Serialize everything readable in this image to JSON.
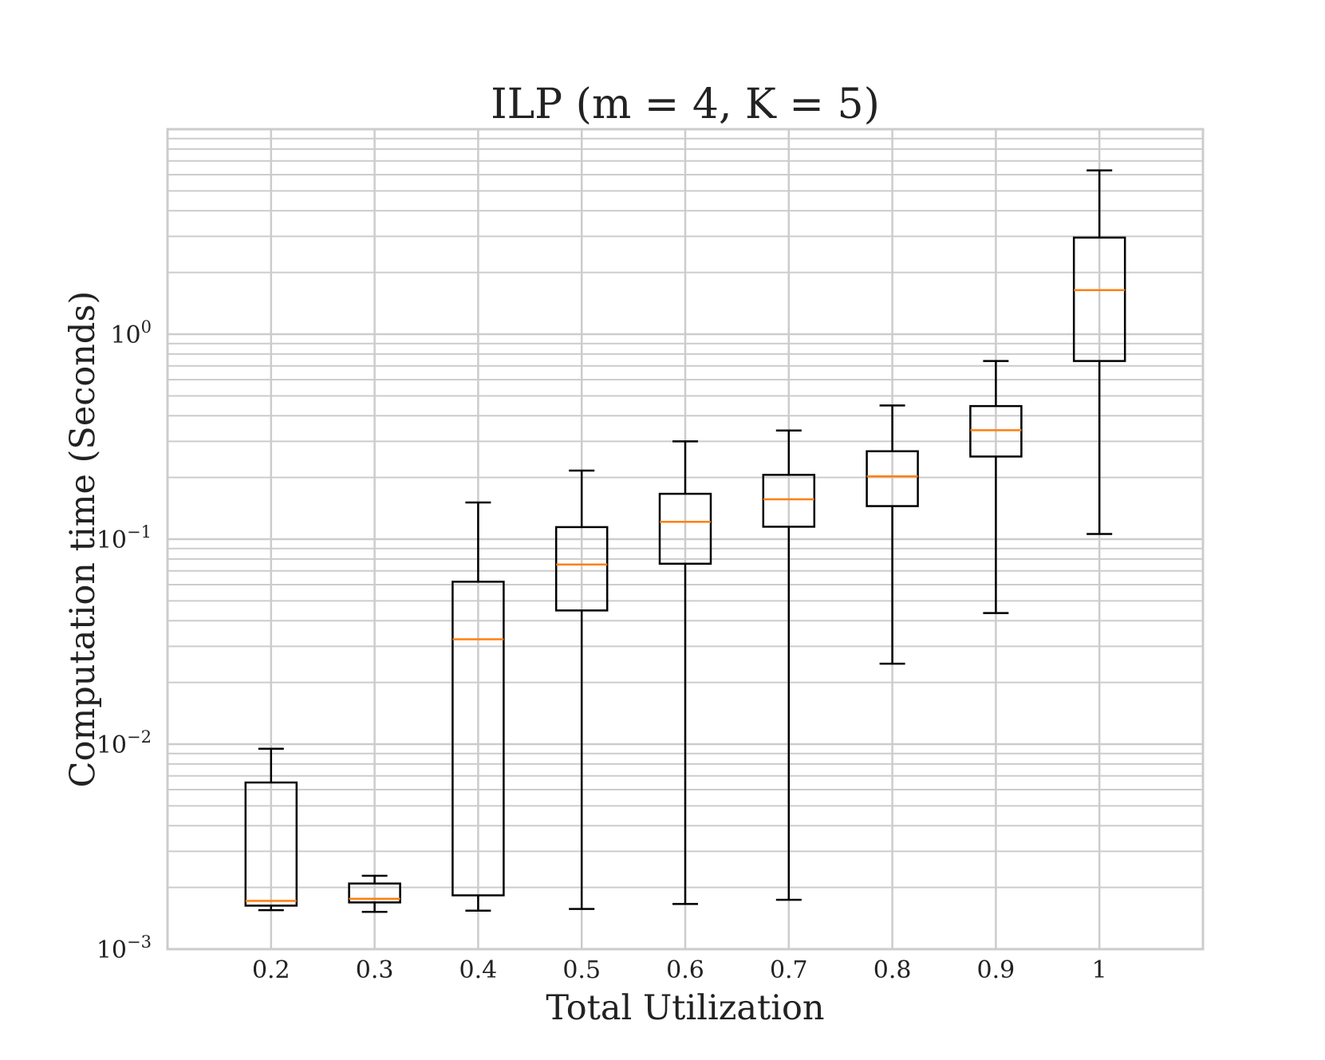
{
  "chart_data": {
    "type": "boxplot",
    "title": "ILP (m = 4, K = 5)",
    "xlabel": "Total Utilization",
    "ylabel": "Computation time (Seconds)",
    "yscale": "log",
    "ylim": [
      0.001,
      10
    ],
    "y_tick_labels": [
      {
        "base": "10",
        "exp": "0",
        "value": 1
      },
      {
        "base": "10",
        "exp": "−1",
        "value": 0.1
      },
      {
        "base": "10",
        "exp": "−2",
        "value": 0.01
      },
      {
        "base": "10",
        "exp": "−3",
        "value": 0.001
      }
    ],
    "grid": true,
    "categories": [
      "0.2",
      "0.3",
      "0.4",
      "0.5",
      "0.6",
      "0.7",
      "0.8",
      "0.9",
      "1"
    ],
    "boxes": [
      {
        "whislo": 0.00155,
        "q1": 0.00163,
        "med": 0.00172,
        "q3": 0.0065,
        "whishi": 0.0095
      },
      {
        "whislo": 0.00152,
        "q1": 0.00169,
        "med": 0.00176,
        "q3": 0.00209,
        "whishi": 0.00228
      },
      {
        "whislo": 0.00154,
        "q1": 0.00183,
        "med": 0.0325,
        "q3": 0.062,
        "whishi": 0.151
      },
      {
        "whislo": 0.00157,
        "q1": 0.0449,
        "med": 0.0752,
        "q3": 0.1145,
        "whishi": 0.216
      },
      {
        "whislo": 0.00166,
        "q1": 0.0759,
        "med": 0.1215,
        "q3": 0.1665,
        "whishi": 0.3
      },
      {
        "whislo": 0.00174,
        "q1": 0.115,
        "med": 0.1565,
        "q3": 0.206,
        "whishi": 0.339
      },
      {
        "whislo": 0.0247,
        "q1": 0.145,
        "med": 0.2025,
        "q3": 0.2685,
        "whishi": 0.449
      },
      {
        "whislo": 0.0436,
        "q1": 0.253,
        "med": 0.34,
        "q3": 0.446,
        "whishi": 0.74
      },
      {
        "whislo": 0.106,
        "q1": 0.74,
        "med": 1.64,
        "q3": 2.96,
        "whishi": 6.3
      }
    ],
    "box_color": "#000000",
    "median_color": "#ff7f0e",
    "grid_color": "#cccccc"
  }
}
